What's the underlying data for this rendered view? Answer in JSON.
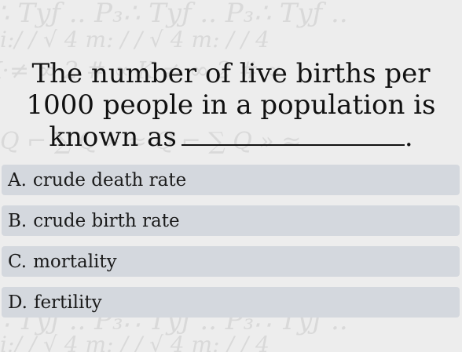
{
  "question": {
    "text": "The number of live births per 1000 people in a population is known as",
    "end_punctuation": "."
  },
  "options": [
    {
      "letter": "A.",
      "text": "crude death rate"
    },
    {
      "letter": "B.",
      "text": "crude birth rate"
    },
    {
      "letter": "C.",
      "text": "mortality"
    },
    {
      "letter": "D.",
      "text": "fertility"
    }
  ],
  "colors": {
    "background": "#ededed",
    "option_background": "#d4d8de",
    "text": "#111111"
  }
}
